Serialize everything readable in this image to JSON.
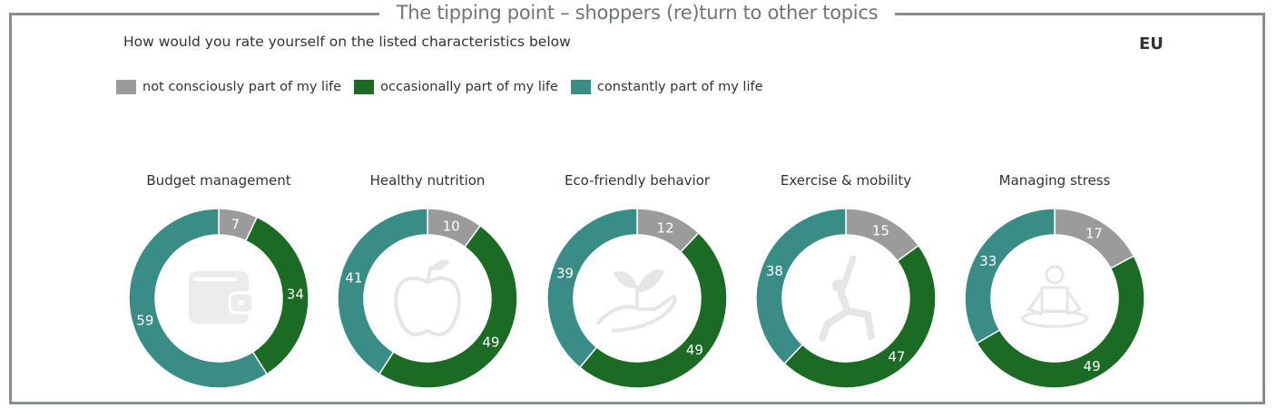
{
  "title": "The tipping point – shoppers (re)turn to other topics",
  "subtitle": "How would you rate yourself on the listed characteristics below",
  "region": "EU",
  "colors": {
    "not": "#9b9b9b",
    "occasionally": "#1b6b25",
    "constantly": "#3a8c87",
    "frame": "#8a8e93"
  },
  "legend": [
    {
      "label": "not consciously part of my life",
      "color": "#9b9b9b"
    },
    {
      "label": "occasionally part of my life",
      "color": "#1b6b25"
    },
    {
      "label": "constantly part of my life",
      "color": "#3a8c87"
    }
  ],
  "chart_data": {
    "type": "donut",
    "series_names": [
      "not consciously part of my life",
      "occasionally part of my life",
      "constantly part of my life"
    ],
    "charts": [
      {
        "title": "Budget management",
        "icon": "wallet-icon",
        "values": [
          7,
          34,
          59
        ]
      },
      {
        "title": "Healthy nutrition",
        "icon": "apple-icon",
        "values": [
          10,
          49,
          41
        ]
      },
      {
        "title": "Eco-friendly behavior",
        "icon": "plant-in-hand-icon",
        "values": [
          12,
          49,
          39
        ]
      },
      {
        "title": "Exercise & mobility",
        "icon": "yoga-stretch-icon",
        "values": [
          15,
          47,
          38
        ]
      },
      {
        "title": "Managing stress",
        "icon": "meditation-icon",
        "values": [
          17,
          49,
          33
        ]
      }
    ]
  }
}
